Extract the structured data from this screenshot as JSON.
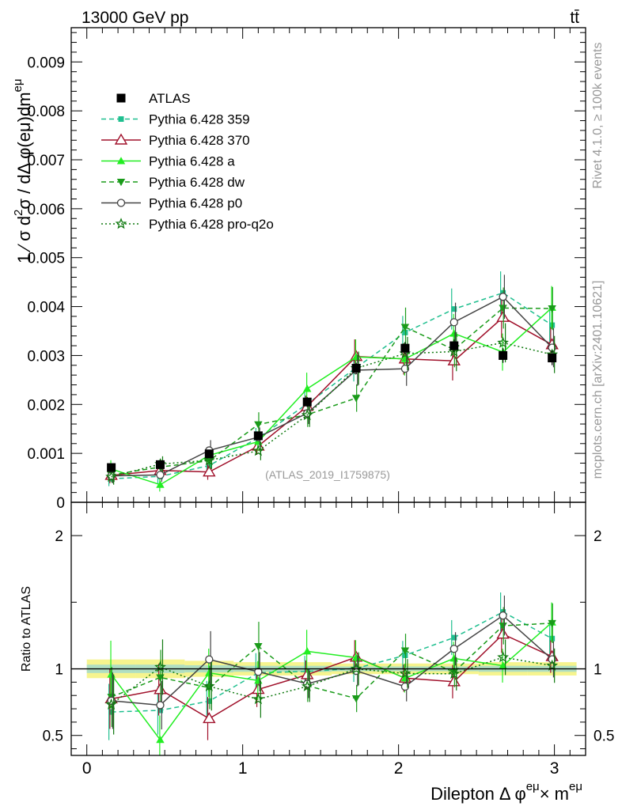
{
  "header": {
    "energy_label": "13000 GeV pp",
    "process_label": "tt̄",
    "watermark_label": "(ATLAS_2019_I1759875)",
    "side_rivet": "Rivet 4.1.0, ≥ 100k events",
    "side_mcplots": "mcplots.cern.ch [arXiv:2401.10621]"
  },
  "chart_data": {
    "type": "line",
    "title": "",
    "xlabel": "Dilepton Δ φ^{eμ} × m^{eμ}",
    "xlabel_main": "Dilepton",
    "xlabel_phi": "Δ φ",
    "xlabel_sup1": "eμ",
    "xlabel_times": "× m",
    "xlabel_sup2": "eμ",
    "ylabel": "1/σ dσ/dΔφ(eμ)dm^{eμ}",
    "ylabel_parts": {
      "first": "1 ⁄ σ  d",
      "sup2": "2",
      "second": "σ / dΔ φ(eμ)dm",
      "sup": "eμ"
    },
    "ratio_ylabel": "Ratio to ATLAS",
    "xlim": [
      -0.1,
      3.2
    ],
    "ylim": [
      0,
      0.0097
    ],
    "ratio_ylim": [
      0.35,
      2.25
    ],
    "x_ticks": [
      0,
      1,
      2,
      3
    ],
    "x_tick_labels": [
      "0",
      "1",
      "2",
      "3"
    ],
    "y_ticks": [
      0,
      0.001,
      0.002,
      0.003,
      0.004,
      0.005,
      0.006,
      0.007,
      0.008,
      0.009
    ],
    "y_tick_labels": [
      "0",
      "0.001",
      "0.002",
      "0.003",
      "0.004",
      "0.005",
      "0.006",
      "0.007",
      "0.008",
      "0.009"
    ],
    "ratio_ticks": [
      0.5,
      1,
      2
    ],
    "ratio_tick_labels": [
      "0.5",
      "1",
      "2"
    ],
    "x": [
      0.157,
      0.471,
      0.785,
      1.1,
      1.414,
      1.728,
      2.042,
      2.356,
      2.67,
      2.985
    ],
    "legend_position": "top-left",
    "data": {
      "name": "ATLAS",
      "values": [
        0.00071,
        0.00077,
        0.00099,
        0.00136,
        0.00205,
        0.00274,
        0.00315,
        0.0032,
        0.003,
        0.00295
      ],
      "band_rel": [
        0.07,
        0.07,
        0.06,
        0.05,
        0.05,
        0.04,
        0.04,
        0.04,
        0.05,
        0.05
      ]
    },
    "series": [
      {
        "name": "Pythia 6.428 359",
        "color": "#1fbf8f",
        "dash": "6,4",
        "marker": "square-filled",
        "values": [
          0.00048,
          0.00053,
          0.00075,
          0.00132,
          0.00201,
          0.00275,
          0.00347,
          0.00395,
          0.00428,
          0.00362
        ],
        "errors": [
          0.00015,
          0.00014,
          0.00015,
          0.0002,
          0.00024,
          0.00028,
          0.00034,
          0.00042,
          0.00044,
          0.00038
        ]
      },
      {
        "name": "Pythia 6.428 370",
        "color": "#a0102a",
        "dash": "",
        "marker": "triangle-open",
        "values": [
          0.00055,
          0.00065,
          0.00062,
          0.00115,
          0.00196,
          0.00298,
          0.00293,
          0.00289,
          0.00378,
          0.00322
        ],
        "errors": [
          0.00016,
          0.00015,
          0.00016,
          0.00018,
          0.00022,
          0.00035,
          0.00032,
          0.0004,
          0.00042,
          0.00036
        ]
      },
      {
        "name": "Pythia 6.428 a",
        "color": "#22ee22",
        "dash": "",
        "marker": "triangle-filled",
        "values": [
          0.00068,
          0.00036,
          0.00096,
          0.00124,
          0.00232,
          0.00297,
          0.00293,
          0.00345,
          0.00307,
          0.00398
        ],
        "errors": [
          0.00018,
          0.00014,
          0.00018,
          0.0002,
          0.00033,
          0.00036,
          0.00034,
          0.0004,
          0.00038,
          0.00044
        ]
      },
      {
        "name": "Pythia 6.428 dw",
        "color": "#1a9b1a",
        "dash": "6,4",
        "marker": "triangle-down-filled",
        "values": [
          0.00056,
          0.00072,
          0.00085,
          0.00159,
          0.00179,
          0.00213,
          0.00358,
          0.00312,
          0.00397,
          0.00396
        ],
        "errors": [
          0.00016,
          0.00016,
          0.00016,
          0.00025,
          0.00025,
          0.00028,
          0.0004,
          0.00036,
          0.00042,
          0.00044
        ]
      },
      {
        "name": "Pythia 6.428 p0",
        "color": "#444444",
        "dash": "",
        "marker": "circle-open",
        "values": [
          0.00054,
          0.00056,
          0.00106,
          0.00133,
          0.00182,
          0.0027,
          0.00273,
          0.00368,
          0.0042,
          0.00316
        ],
        "errors": [
          0.00015,
          0.00014,
          0.00021,
          0.0002,
          0.00022,
          0.00032,
          0.00035,
          0.0004,
          0.00045,
          0.0004
        ]
      },
      {
        "name": "Pythia 6.428 pro-q2o",
        "color": "#117a11",
        "dash": "2,3",
        "marker": "star",
        "values": [
          0.00052,
          0.00078,
          0.00086,
          0.00105,
          0.00178,
          0.00274,
          0.00304,
          0.00308,
          0.00326,
          0.00302
        ],
        "errors": [
          0.00016,
          0.00016,
          0.00018,
          0.00019,
          0.00024,
          0.00034,
          0.00034,
          0.0004,
          0.0004,
          0.00038
        ]
      }
    ]
  }
}
